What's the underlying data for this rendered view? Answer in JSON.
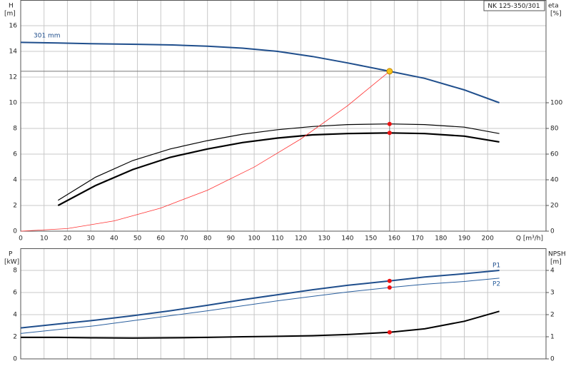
{
  "chart_data": [
    {
      "type": "line",
      "title": "NK 125-350/301",
      "ylabel": "H",
      "yunit": "[m]",
      "y2label": "eta",
      "y2unit": "[%]",
      "xlabel": "Q [m³/h]",
      "xlim": [
        0,
        225
      ],
      "xticks": [
        0,
        10,
        20,
        30,
        40,
        50,
        60,
        70,
        80,
        90,
        100,
        110,
        120,
        130,
        140,
        150,
        160,
        170,
        180,
        190,
        200
      ],
      "ylim": [
        0,
        18
      ],
      "yticks": [
        0,
        2,
        4,
        6,
        8,
        10,
        12,
        14,
        16
      ],
      "y2lim": [
        0,
        180
      ],
      "y2ticks": [
        0,
        20,
        40,
        60,
        80,
        100
      ],
      "grid": true,
      "show_xtick_labels": true,
      "series": [
        {
          "name": "301 mm",
          "color": "#1f4e8c",
          "width": 2,
          "style": "line",
          "x": [
            0,
            16,
            30,
            50,
            65,
            80,
            95,
            110,
            125,
            140,
            158,
            173,
            190,
            205
          ],
          "values": [
            14.7,
            14.65,
            14.6,
            14.55,
            14.5,
            14.4,
            14.25,
            14.0,
            13.6,
            13.1,
            12.45,
            11.9,
            11.0,
            10.0
          ]
        },
        {
          "color": "#000000",
          "width": 1.2,
          "style": "line",
          "axis": "y2",
          "x": [
            16,
            32,
            48,
            64,
            80,
            95,
            110,
            125,
            140,
            158,
            173,
            190,
            205
          ],
          "values": [
            24,
            42,
            55,
            64,
            70.5,
            75.5,
            79,
            81.5,
            83,
            83.5,
            83,
            81,
            76
          ]
        },
        {
          "color": "#000000",
          "width": 2.2,
          "style": "line",
          "axis": "y2",
          "x": [
            16,
            32,
            48,
            64,
            80,
            95,
            110,
            125,
            140,
            158,
            173,
            190,
            205
          ],
          "values": [
            20,
            35.5,
            48,
            57.5,
            64,
            69,
            72.5,
            75,
            76,
            76.5,
            76,
            74,
            69.5
          ]
        },
        {
          "color": "#ff3030",
          "width": 0.8,
          "style": "line",
          "x": [
            0,
            20,
            40,
            60,
            80,
            100,
            120,
            140,
            158
          ],
          "values": [
            0,
            0.2,
            0.8,
            1.8,
            3.19,
            4.99,
            7.18,
            9.77,
            12.45
          ]
        },
        {
          "color": "#f5c518",
          "style": "dot",
          "guides": true,
          "x": [
            158
          ],
          "values": [
            12.45
          ]
        },
        {
          "color": "#ee1111",
          "style": "dot",
          "axis": "y2",
          "x": [
            158
          ],
          "values": [
            83.5
          ]
        },
        {
          "color": "#ee1111",
          "style": "dot",
          "axis": "y2",
          "x": [
            158
          ],
          "values": [
            76.5
          ]
        }
      ]
    },
    {
      "type": "line",
      "ylabel": "P",
      "yunit": "[kW]",
      "y2label": "NPSH",
      "y2unit": "[m]",
      "xlim": [
        0,
        225
      ],
      "xticks": [
        0,
        10,
        20,
        30,
        40,
        50,
        60,
        70,
        80,
        90,
        100,
        110,
        120,
        130,
        140,
        150,
        160,
        170,
        180,
        190,
        200
      ],
      "ylim": [
        0,
        10
      ],
      "yticks": [
        0,
        2,
        4,
        6,
        8
      ],
      "y2lim": [
        0,
        5
      ],
      "y2ticks": [
        0,
        1,
        2,
        3,
        4
      ],
      "grid": true,
      "show_xtick_labels": false,
      "series": [
        {
          "name": "P1",
          "color": "#1f4e8c",
          "width": 2,
          "style": "line",
          "x": [
            0,
            16,
            32,
            48,
            64,
            80,
            95,
            110,
            125,
            140,
            158,
            173,
            190,
            205
          ],
          "values": [
            2.8,
            3.15,
            3.5,
            3.9,
            4.35,
            4.85,
            5.35,
            5.8,
            6.25,
            6.65,
            7.05,
            7.4,
            7.7,
            8.0
          ]
        },
        {
          "name": "P2",
          "color": "#2a5f9e",
          "width": 1,
          "style": "line",
          "x": [
            0,
            16,
            32,
            48,
            64,
            80,
            95,
            110,
            125,
            140,
            158,
            173,
            190,
            205
          ],
          "values": [
            2.3,
            2.65,
            3.0,
            3.45,
            3.9,
            4.35,
            4.8,
            5.25,
            5.65,
            6.05,
            6.45,
            6.75,
            7.0,
            7.3
          ]
        },
        {
          "color": "#000000",
          "width": 2,
          "style": "line",
          "axis": "y2",
          "x": [
            0,
            16,
            32,
            48,
            64,
            80,
            95,
            110,
            125,
            140,
            158,
            173,
            190,
            205
          ],
          "values": [
            0.97,
            0.97,
            0.95,
            0.94,
            0.95,
            0.97,
            1.0,
            1.02,
            1.05,
            1.1,
            1.2,
            1.36,
            1.7,
            2.15
          ]
        },
        {
          "color": "#ee1111",
          "style": "dot",
          "x": [
            158
          ],
          "values": [
            7.05
          ]
        },
        {
          "color": "#ee1111",
          "style": "dot",
          "x": [
            158
          ],
          "values": [
            6.45
          ]
        },
        {
          "color": "#ee1111",
          "style": "dot",
          "axis": "y2",
          "x": [
            158
          ],
          "values": [
            1.2
          ]
        }
      ]
    }
  ]
}
